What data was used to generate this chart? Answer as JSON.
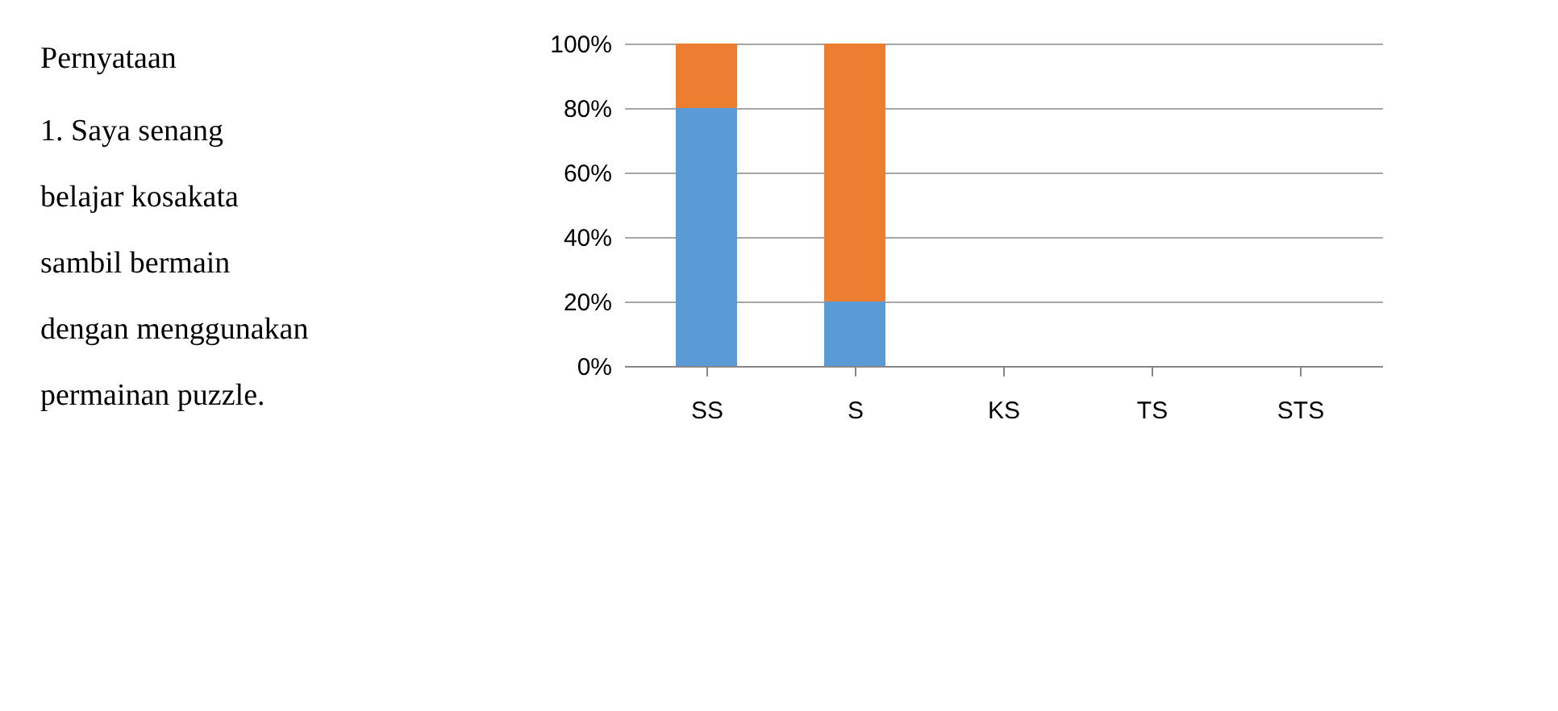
{
  "chart_data": {
    "type": "bar",
    "stacked": true,
    "categories": [
      "SS",
      "S",
      "KS",
      "TS",
      "STS"
    ],
    "series": [
      {
        "color": "#5b9bd5",
        "values": [
          80,
          20,
          0,
          0,
          0
        ]
      },
      {
        "color": "#ed7d31",
        "values": [
          20,
          80,
          0,
          0,
          0
        ]
      }
    ],
    "ylim": [
      0,
      100
    ],
    "yticks": [
      {
        "value": 0,
        "label": "0%"
      },
      {
        "value": 20,
        "label": "20%"
      },
      {
        "value": 40,
        "label": "40%"
      },
      {
        "value": 60,
        "label": "60%"
      },
      {
        "value": 80,
        "label": "80%"
      },
      {
        "value": 100,
        "label": "100%"
      }
    ],
    "grid": "y",
    "legend": false,
    "annotations": [
      "Pernyataan",
      "1. Saya senang belajar kosakata sambil bermain dengan menggunakan permainan puzzle."
    ]
  }
}
